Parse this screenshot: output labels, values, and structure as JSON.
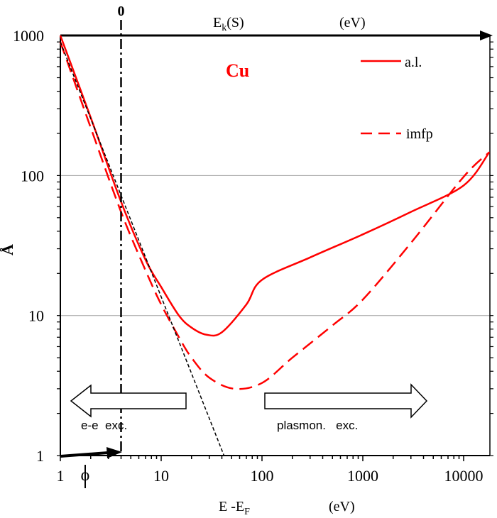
{
  "chart_data": {
    "type": "line",
    "x_scale": "log",
    "y_scale": "log",
    "xlim": [
      1,
      18000
    ],
    "ylim": [
      1,
      1000
    ],
    "xlabel": "E -E",
    "xlabel_sub": "F",
    "xlabel_unit": "(eV)",
    "ylabel": "Å",
    "top_axis_label": "E",
    "top_axis_label_sub": "k",
    "top_axis_label_rest": "(S)",
    "top_axis_unit": "(eV)",
    "top_axis_zero": "0",
    "x_ticks": [
      "1",
      "10",
      "100",
      "1000",
      "10000"
    ],
    "x_tick_values": [
      1,
      10,
      100,
      1000,
      10000
    ],
    "y_ticks": [
      "1000",
      "100",
      "10",
      "1"
    ],
    "y_tick_values": [
      1000,
      100,
      10,
      1
    ],
    "grid": "horizontal at 10 and 100",
    "element_label": "Cu",
    "phi_label": "ϕ",
    "phi_value": 4,
    "colors": {
      "curves": "#ff0000",
      "axes": "#000000",
      "grid": "#a0a0a0"
    },
    "legend": {
      "placement": "top-right",
      "entries": [
        "a.l.",
        "imfp"
      ]
    },
    "annotations": {
      "left_region": "e-e  exc.",
      "right_region": "plasmon.   exc."
    },
    "series": [
      {
        "name": "a.l.",
        "style": "solid",
        "color": "#ff0000",
        "x": [
          1,
          2,
          4,
          7,
          10,
          15,
          20,
          28,
          40,
          70,
          100,
          300,
          1000,
          3000,
          10000,
          18000
        ],
        "y": [
          1000,
          260,
          65,
          25,
          16,
          10,
          8.2,
          7.3,
          7.6,
          12,
          18,
          26,
          38,
          55,
          85,
          147
        ]
      },
      {
        "name": "imfp",
        "style": "dashed",
        "color": "#ff0000",
        "x": [
          1,
          2,
          4,
          7,
          10,
          15,
          20,
          30,
          53,
          100,
          200,
          500,
          1000,
          3000,
          10000,
          18000
        ],
        "y": [
          900,
          220,
          55,
          21,
          12,
          7,
          5,
          3.6,
          3.0,
          3.3,
          5,
          8.5,
          13,
          33,
          98,
          147
        ]
      },
      {
        "style": "dashed-thin",
        "color": "#000000",
        "x": [
          1,
          42
        ],
        "y": [
          900,
          1
        ]
      }
    ]
  }
}
